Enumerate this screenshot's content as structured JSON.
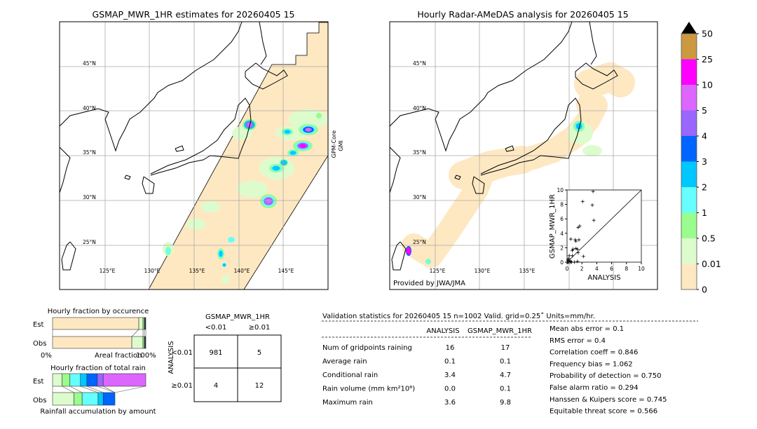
{
  "left_map": {
    "title": "GSMAP_MWR_1HR estimates for 20260405 15",
    "sensor_label_1": "GPM-Core",
    "sensor_label_2": "GMI",
    "lat_labels": [
      "45°N",
      "40°N",
      "35°N",
      "30°N",
      "25°N"
    ],
    "lon_labels": [
      "125°E",
      "130°E",
      "135°E",
      "140°E",
      "145°E"
    ]
  },
  "right_map": {
    "title": "Hourly Radar-AMeDAS analysis for 20260405 15",
    "credit": "Provided by JWA/JMA",
    "lat_labels": [
      "45°N",
      "40°N",
      "35°N",
      "30°N",
      "25°N"
    ],
    "lon_labels": [
      "125°E",
      "130°E",
      "135°E"
    ]
  },
  "colorbar": {
    "ticks": [
      "0",
      "0.01",
      "0.5",
      "1",
      "2",
      "3",
      "4",
      "5",
      "10",
      "25",
      "50"
    ],
    "colors": [
      "#fee8c2",
      "#ddfccd",
      "#99fc8c",
      "#66fefe",
      "#00c8fe",
      "#0064fe",
      "#9966fe",
      "#dc66fe",
      "#fe00fe",
      "#cc9940"
    ],
    "extend_color": "#000000"
  },
  "chart_data": [
    {
      "type": "scatter",
      "xlabel": "ANALYSIS",
      "ylabel": "GSMAP_MWR_1HR",
      "xlim": [
        0,
        10
      ],
      "ylim": [
        0,
        10
      ],
      "xticks": [
        "0",
        "2",
        "4",
        "6",
        "8",
        "10"
      ],
      "yticks": [
        "0",
        "2",
        "4",
        "6",
        "8",
        "10"
      ],
      "diagonal": true,
      "points": [
        [
          3.5,
          9.8
        ],
        [
          2.1,
          8.4
        ],
        [
          3.4,
          7.9
        ],
        [
          3.6,
          5.8
        ],
        [
          1.7,
          5.0
        ],
        [
          1.5,
          4.8
        ],
        [
          0.5,
          3.2
        ],
        [
          1.1,
          3.1
        ],
        [
          1.6,
          3.1
        ],
        [
          1.2,
          2.9
        ],
        [
          0.8,
          1.8
        ],
        [
          0.7,
          1.6
        ],
        [
          1.2,
          1.9
        ],
        [
          1.4,
          1.8
        ],
        [
          1.5,
          1.3
        ],
        [
          2.2,
          0.8
        ],
        [
          0.3,
          0.9
        ],
        [
          0.7,
          0.9
        ],
        [
          0.2,
          0.5
        ],
        [
          0.1,
          0.3
        ],
        [
          0.3,
          0.2
        ],
        [
          0.5,
          0.1
        ],
        [
          0.1,
          0.0
        ],
        [
          0.2,
          0.0
        ],
        [
          0.4,
          0.0
        ],
        [
          0.6,
          0.0
        ],
        [
          1.0,
          0.0
        ],
        [
          1.4,
          0.1
        ],
        [
          0.0,
          0.0
        ]
      ]
    },
    {
      "type": "bar",
      "title": "Hourly fraction by occurence",
      "xlabel": "Areal fraction",
      "xtick_left": "0%",
      "xtick_right": "100%",
      "categories": [
        "Est",
        "Obs"
      ],
      "series": [
        {
          "values_percent": [
            92.5,
            4.5,
            1.5,
            1.5
          ]
        },
        {
          "values_percent": [
            85.0,
            12.0,
            1.5,
            1.5
          ]
        }
      ],
      "segment_colors": [
        "#fee8c2",
        "#ddfccd",
        "#99fc8c",
        "#1a2a40"
      ]
    },
    {
      "type": "bar",
      "title": "Hourly fraction of total rain",
      "xlabel": "Rainfall accumulation by amount",
      "categories": [
        "Est",
        "Obs"
      ],
      "series": [
        {
          "values_percent": [
            10.3,
            8.3,
            11.3,
            6.8,
            11.3,
            6.3,
            45.7
          ]
        },
        {
          "values_percent": [
            22.9,
            8.8,
            17.1,
            5.5,
            12.6
          ]
        }
      ],
      "segment_colors": [
        "#ddfccd",
        "#99fc8c",
        "#66fefe",
        "#00c8fe",
        "#0064fe",
        "#9966fe",
        "#dc66fe"
      ]
    }
  ],
  "contingency": {
    "title": "GSMAP_MWR_1HR",
    "col_labels": [
      "<0.01",
      "≥0.01"
    ],
    "row_axis": "ANALYSIS",
    "row_labels": [
      "<0.01",
      "≥0.01"
    ],
    "cells": [
      [
        "981",
        "5"
      ],
      [
        "4",
        "12"
      ]
    ]
  },
  "stats": {
    "header": "Validation statistics for 20260405 15  n=1002 Valid. grid=0.25˚ Units=mm/hr.",
    "col_analysis": "ANALYSIS",
    "col_gsmap": "GSMAP_MWR_1HR",
    "rows": [
      {
        "label": "Num of gridpoints raining",
        "analysis": "16",
        "gsmap": "17"
      },
      {
        "label": "Average rain",
        "analysis": "0.1",
        "gsmap": "0.1"
      },
      {
        "label": "Conditional rain",
        "analysis": "3.4",
        "gsmap": "4.7"
      },
      {
        "label": "Rain volume (mm km²10⁶)",
        "analysis": "0.0",
        "gsmap": "0.1"
      },
      {
        "label": "Maximum rain",
        "analysis": "3.6",
        "gsmap": "9.8"
      }
    ],
    "scores": [
      "Mean abs error =    0.1",
      "RMS error =    0.4",
      "Correlation coeff =  0.846",
      "Frequency bias =  1.062",
      "Probability of detection =  0.750",
      "False alarm ratio =  0.294",
      "Hanssen & Kuipers score =  0.745",
      "Equitable threat score =  0.566"
    ]
  }
}
